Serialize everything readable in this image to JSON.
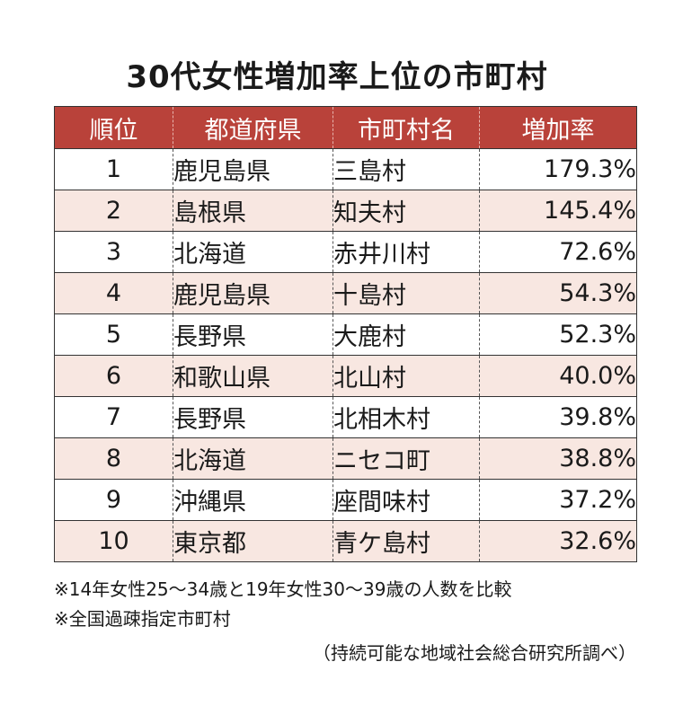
{
  "chart_data": {
    "type": "table",
    "title": "30代女性増加率上位の市町村",
    "columns": [
      "順位",
      "都道府県",
      "市町村名",
      "増加率"
    ],
    "rows": [
      [
        "1",
        "鹿児島県",
        "三島村",
        "179.3%"
      ],
      [
        "2",
        "島根県",
        "知夫村",
        "145.4%"
      ],
      [
        "3",
        "北海道",
        "赤井川村",
        "72.6%"
      ],
      [
        "4",
        "鹿児島県",
        "十島村",
        "54.3%"
      ],
      [
        "5",
        "長野県",
        "大鹿村",
        "52.3%"
      ],
      [
        "6",
        "和歌山県",
        "北山村",
        "40.0%"
      ],
      [
        "7",
        "長野県",
        "北相木村",
        "39.8%"
      ],
      [
        "8",
        "北海道",
        "ニセコ町",
        "38.8%"
      ],
      [
        "9",
        "沖縄県",
        "座間味村",
        "37.2%"
      ],
      [
        "10",
        "東京都",
        "青ケ島村",
        "32.6%"
      ]
    ],
    "values": [
      179.3,
      145.4,
      72.6,
      54.3,
      52.3,
      40.0,
      39.8,
      38.8,
      37.2,
      32.6
    ],
    "notes": [
      "※14年女性25〜34歳と19年女性30〜39歳の人数を比較",
      "※全国過疎指定市町村"
    ],
    "source": "（持続可能な地域社会総合研究所調べ）"
  },
  "colors": {
    "header_bg": "#b9423a",
    "header_text": "#ffffff",
    "stripe_bg": "#f8e7e1"
  }
}
